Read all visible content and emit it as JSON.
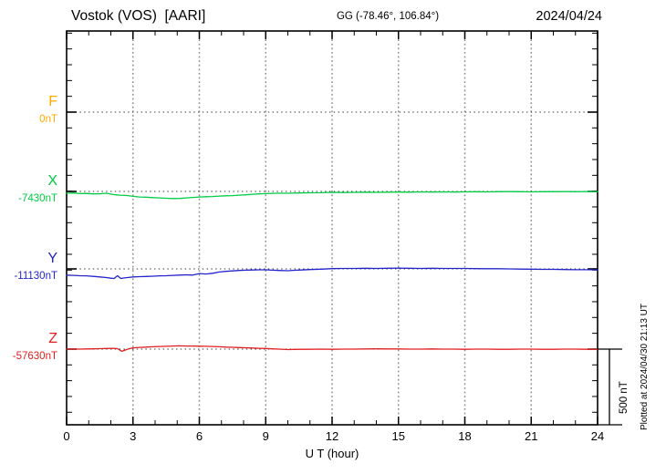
{
  "chart_data": {
    "type": "line",
    "title": "Vostok (VOS)  [AARI]",
    "coords_label": "GG (-78.46°, 106.84°)",
    "date_label": "2024/04/24",
    "xlabel": "U T (hour)",
    "x_range": [
      0,
      24
    ],
    "x_major_ticks": [
      0,
      3,
      6,
      9,
      12,
      15,
      18,
      21,
      24
    ],
    "x_minor_step_hours": 1,
    "y_minor_tick_nT": 100,
    "scale_bar_label": "500 nT",
    "scale_bar_nT": 500,
    "plotted_at": "Plotted at 2024/04/30 21:13 UT",
    "grid": {
      "vertical_dotted_at_hours": [
        3,
        6,
        9,
        12,
        15,
        18,
        21
      ],
      "horizontal_dotted_at": "component baselines"
    },
    "point_format": "[hour_UT, offset_nT_from_baseline]",
    "series": [
      {
        "name": "F",
        "baseline_label": "0nT",
        "color": "#FFAC00",
        "points": []
      },
      {
        "name": "X",
        "baseline_label": "-7430nT",
        "color": "#00CC44",
        "points": [
          [
            0,
            -12
          ],
          [
            0.3,
            -10
          ],
          [
            0.6,
            -14
          ],
          [
            0.9,
            -13
          ],
          [
            1.2,
            -16
          ],
          [
            1.5,
            -15
          ],
          [
            1.8,
            -12
          ],
          [
            2.1,
            -20
          ],
          [
            2.4,
            -24
          ],
          [
            2.7,
            -26
          ],
          [
            3,
            -32
          ],
          [
            3.3,
            -36
          ],
          [
            3.6,
            -37
          ],
          [
            3.9,
            -40
          ],
          [
            4.2,
            -42
          ],
          [
            4.5,
            -44
          ],
          [
            4.8,
            -46
          ],
          [
            5.1,
            -45
          ],
          [
            5.4,
            -42
          ],
          [
            5.7,
            -39
          ],
          [
            6,
            -36
          ],
          [
            6.3,
            -34
          ],
          [
            6.6,
            -33
          ],
          [
            6.9,
            -30
          ],
          [
            7.2,
            -28
          ],
          [
            7.5,
            -27
          ],
          [
            7.8,
            -24
          ],
          [
            8.1,
            -22
          ],
          [
            8.4,
            -18
          ],
          [
            8.7,
            -16
          ],
          [
            9,
            -14
          ],
          [
            9.5,
            -12
          ],
          [
            10,
            -12
          ],
          [
            10.5,
            -10
          ],
          [
            11,
            -9
          ],
          [
            11.5,
            -8
          ],
          [
            12,
            -6
          ],
          [
            12.5,
            -7
          ],
          [
            13,
            -6
          ],
          [
            13.5,
            -5
          ],
          [
            14,
            -6
          ],
          [
            14.5,
            -5
          ],
          [
            15,
            -4
          ],
          [
            15.5,
            -5
          ],
          [
            16,
            -3
          ],
          [
            16.5,
            -4
          ],
          [
            17,
            -3
          ],
          [
            17.5,
            -4
          ],
          [
            18,
            -3
          ],
          [
            18.5,
            -2
          ],
          [
            19,
            -3
          ],
          [
            19.5,
            -2
          ],
          [
            20,
            -1
          ],
          [
            20.5,
            -2
          ],
          [
            21,
            -3
          ],
          [
            21.5,
            -2
          ],
          [
            22,
            -2
          ],
          [
            22.5,
            -1
          ],
          [
            23,
            -2
          ],
          [
            23.5,
            -1
          ],
          [
            24,
            -1
          ]
        ]
      },
      {
        "name": "Y",
        "baseline_label": "-11130nT",
        "color": "#2424CC",
        "points": [
          [
            0,
            -40
          ],
          [
            0.3,
            -42
          ],
          [
            0.6,
            -44
          ],
          [
            0.9,
            -45
          ],
          [
            1.2,
            -48
          ],
          [
            1.5,
            -52
          ],
          [
            1.8,
            -56
          ],
          [
            2,
            -60
          ],
          [
            2.15,
            -62
          ],
          [
            2.3,
            -44
          ],
          [
            2.45,
            -62
          ],
          [
            2.6,
            -58
          ],
          [
            2.8,
            -55
          ],
          [
            3,
            -52
          ],
          [
            3.3,
            -50
          ],
          [
            3.6,
            -49
          ],
          [
            3.9,
            -47
          ],
          [
            4.2,
            -45
          ],
          [
            4.5,
            -44
          ],
          [
            4.8,
            -42
          ],
          [
            5.1,
            -40
          ],
          [
            5.4,
            -38
          ],
          [
            5.7,
            -40
          ],
          [
            6,
            -30
          ],
          [
            6.3,
            -33
          ],
          [
            6.6,
            -28
          ],
          [
            6.9,
            -20
          ],
          [
            7.2,
            -16
          ],
          [
            7.5,
            -13
          ],
          [
            7.8,
            -10
          ],
          [
            8.1,
            -8
          ],
          [
            8.4,
            -7
          ],
          [
            8.7,
            -6
          ],
          [
            9,
            -6
          ],
          [
            9.3,
            -8
          ],
          [
            9.6,
            -10
          ],
          [
            10,
            -12
          ],
          [
            10.3,
            -9
          ],
          [
            10.6,
            -7
          ],
          [
            11,
            -4
          ],
          [
            11.5,
            -2
          ],
          [
            12,
            2
          ],
          [
            12.5,
            3
          ],
          [
            13,
            3
          ],
          [
            13.5,
            4
          ],
          [
            14,
            3
          ],
          [
            14.5,
            4
          ],
          [
            15,
            5
          ],
          [
            15.5,
            4
          ],
          [
            16,
            3
          ],
          [
            16.5,
            4
          ],
          [
            17,
            3
          ],
          [
            17.5,
            3
          ],
          [
            18,
            3
          ],
          [
            18.5,
            2
          ],
          [
            19,
            1
          ],
          [
            19.5,
            1
          ],
          [
            20,
            0
          ],
          [
            20.5,
            -1
          ],
          [
            21,
            -2
          ],
          [
            21.5,
            -3
          ],
          [
            22,
            -3
          ],
          [
            22.5,
            -4
          ],
          [
            23,
            -5
          ],
          [
            23.5,
            -5
          ],
          [
            24,
            -6
          ]
        ]
      },
      {
        "name": "Z",
        "baseline_label": "-57630nT",
        "color": "#E02020",
        "points": [
          [
            0,
            0
          ],
          [
            0.3,
            1
          ],
          [
            0.6,
            0
          ],
          [
            0.9,
            1
          ],
          [
            1.2,
            2
          ],
          [
            1.5,
            3
          ],
          [
            1.8,
            4
          ],
          [
            2.1,
            5
          ],
          [
            2.3,
            3
          ],
          [
            2.5,
            -14
          ],
          [
            2.65,
            -6
          ],
          [
            2.8,
            2
          ],
          [
            3,
            8
          ],
          [
            3.3,
            11
          ],
          [
            3.6,
            13
          ],
          [
            3.9,
            15
          ],
          [
            4.2,
            17
          ],
          [
            4.5,
            18
          ],
          [
            4.8,
            20
          ],
          [
            5.1,
            21
          ],
          [
            5.4,
            20
          ],
          [
            5.7,
            20
          ],
          [
            6,
            19
          ],
          [
            6.3,
            18
          ],
          [
            6.6,
            17
          ],
          [
            6.9,
            15
          ],
          [
            7.2,
            13
          ],
          [
            7.5,
            12
          ],
          [
            7.8,
            10
          ],
          [
            8.1,
            9
          ],
          [
            8.4,
            7
          ],
          [
            8.7,
            5
          ],
          [
            9,
            4
          ],
          [
            9.3,
            2
          ],
          [
            9.6,
            0
          ],
          [
            10,
            -3
          ],
          [
            10.3,
            -2
          ],
          [
            10.6,
            -1
          ],
          [
            11,
            -1
          ],
          [
            11.5,
            0
          ],
          [
            12,
            -1
          ],
          [
            12.5,
            0
          ],
          [
            13,
            0
          ],
          [
            13.5,
            1
          ],
          [
            14,
            2
          ],
          [
            14.5,
            1
          ],
          [
            15,
            1
          ],
          [
            15.5,
            0
          ],
          [
            16,
            0
          ],
          [
            16.5,
            1
          ],
          [
            17,
            0
          ],
          [
            17.5,
            0
          ],
          [
            18,
            -1
          ],
          [
            18.5,
            0
          ],
          [
            19,
            0
          ],
          [
            19.5,
            -1
          ],
          [
            20,
            -1
          ],
          [
            20.5,
            0
          ],
          [
            21,
            0
          ],
          [
            21.5,
            -1
          ],
          [
            22,
            -1
          ],
          [
            22.5,
            0
          ],
          [
            23,
            0
          ],
          [
            23.5,
            -1
          ],
          [
            24,
            -1
          ]
        ]
      }
    ]
  }
}
